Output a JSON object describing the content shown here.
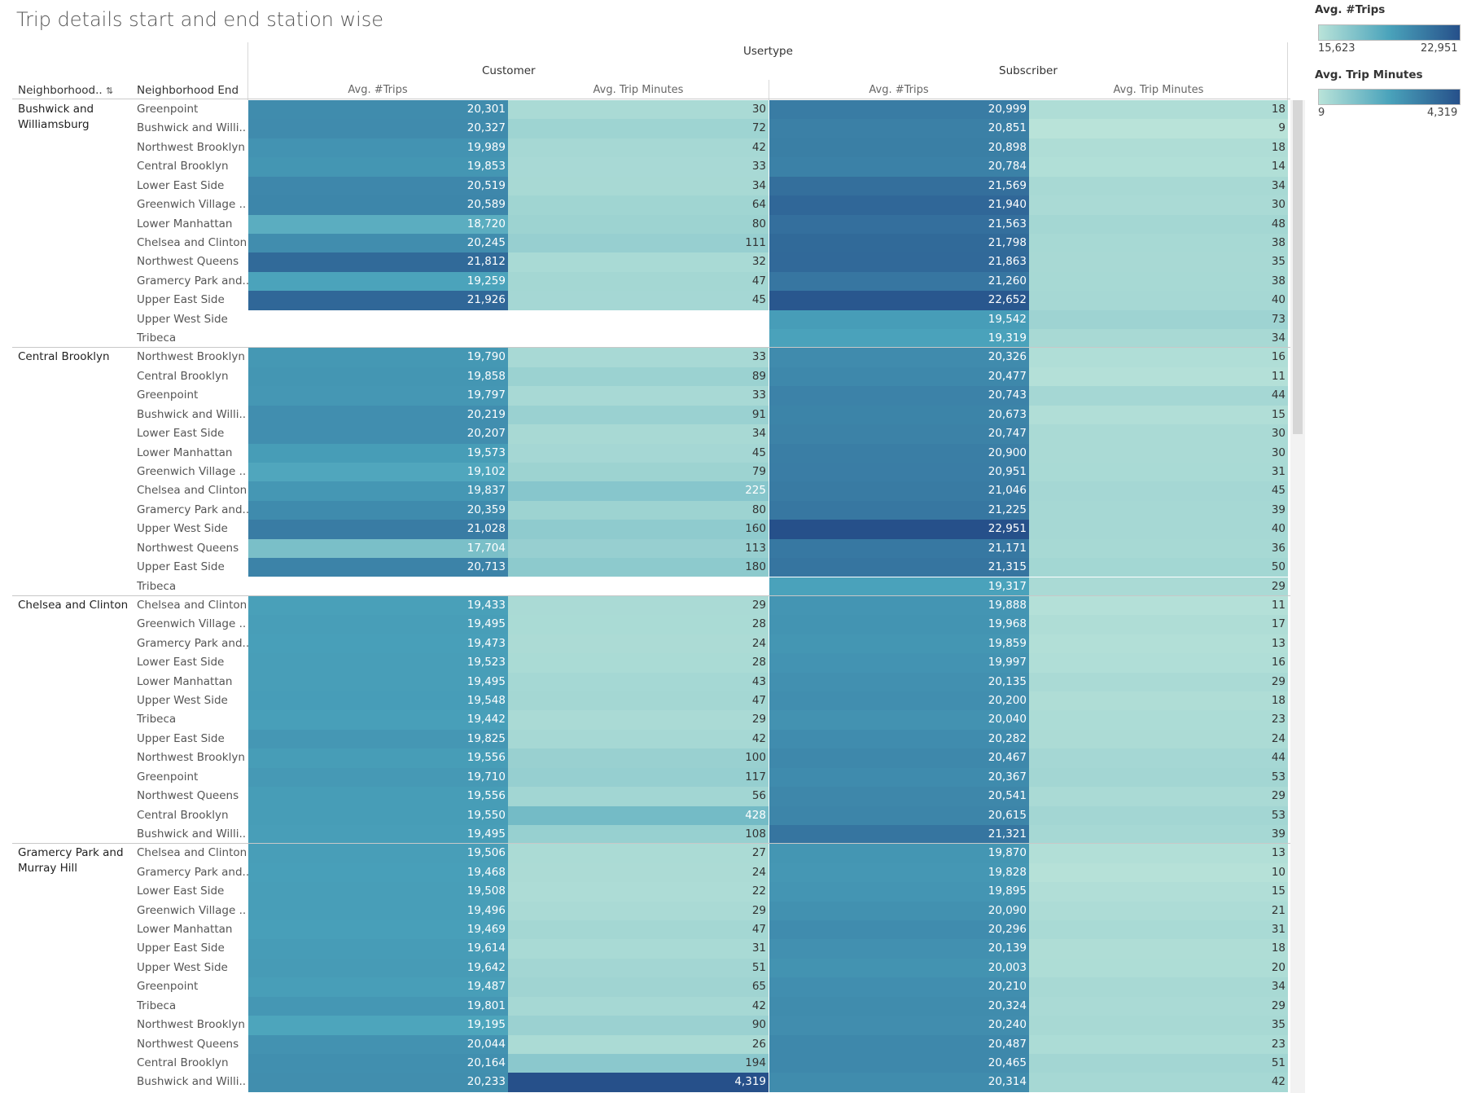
{
  "title": "Trip details start and end station wise",
  "headers": {
    "usertype": "Usertype",
    "customer": "Customer",
    "subscriber": "Subscriber",
    "neighborhood_start": "Neighborhood..",
    "neighborhood_end": "Neighborhood End",
    "avg_trips": "Avg. #Trips",
    "avg_trip_minutes": "Avg. Trip Minutes",
    "sort_icon": "sort-descending-icon"
  },
  "legend": {
    "trips": {
      "title": "Avg. #Trips",
      "min": "15,623",
      "max": "22,951"
    },
    "minutes": {
      "title": "Avg. Trip Minutes",
      "min": "9",
      "max": "4,319"
    }
  },
  "colors": {
    "light": "#b9e3d9",
    "mid": "#4aa3bb",
    "dark": "#26508a"
  },
  "chart_data": {
    "type": "table",
    "title": "Trip details start and end station wise",
    "columns": [
      "Customer Avg. #Trips",
      "Customer Avg. Trip Minutes",
      "Subscriber Avg. #Trips",
      "Subscriber Avg. Trip Minutes"
    ],
    "color_scale": {
      "trips_range": [
        15623,
        22951
      ],
      "minutes_range": [
        9,
        4319
      ]
    },
    "groups": [
      {
        "start": "Bushwick and Williamsburg",
        "rows": [
          {
            "end": "Greenpoint",
            "c_trips": "20,301",
            "c_min": "30",
            "s_trips": "20,999",
            "s_min": "18"
          },
          {
            "end": "Bushwick and Willi..",
            "c_trips": "20,327",
            "c_min": "72",
            "s_trips": "20,851",
            "s_min": "9"
          },
          {
            "end": "Northwest Brooklyn",
            "c_trips": "19,989",
            "c_min": "42",
            "s_trips": "20,898",
            "s_min": "18"
          },
          {
            "end": "Central Brooklyn",
            "c_trips": "19,853",
            "c_min": "33",
            "s_trips": "20,784",
            "s_min": "14"
          },
          {
            "end": "Lower East Side",
            "c_trips": "20,519",
            "c_min": "34",
            "s_trips": "21,569",
            "s_min": "34"
          },
          {
            "end": "Greenwich Village ..",
            "c_trips": "20,589",
            "c_min": "64",
            "s_trips": "21,940",
            "s_min": "30"
          },
          {
            "end": "Lower Manhattan",
            "c_trips": "18,720",
            "c_min": "80",
            "s_trips": "21,563",
            "s_min": "48"
          },
          {
            "end": "Chelsea and Clinton",
            "c_trips": "20,245",
            "c_min": "111",
            "s_trips": "21,798",
            "s_min": "38"
          },
          {
            "end": "Northwest Queens",
            "c_trips": "21,812",
            "c_min": "32",
            "s_trips": "21,863",
            "s_min": "35"
          },
          {
            "end": "Gramercy Park and..",
            "c_trips": "19,259",
            "c_min": "47",
            "s_trips": "21,260",
            "s_min": "38"
          },
          {
            "end": "Upper East Side",
            "c_trips": "21,926",
            "c_min": "45",
            "s_trips": "22,652",
            "s_min": "40"
          },
          {
            "end": "Upper West Side",
            "c_trips": "",
            "c_min": "",
            "s_trips": "19,542",
            "s_min": "73"
          },
          {
            "end": "Tribeca",
            "c_trips": "",
            "c_min": "",
            "s_trips": "19,319",
            "s_min": "34"
          }
        ]
      },
      {
        "start": "Central Brooklyn",
        "rows": [
          {
            "end": "Northwest Brooklyn",
            "c_trips": "19,790",
            "c_min": "33",
            "s_trips": "20,326",
            "s_min": "16"
          },
          {
            "end": "Central Brooklyn",
            "c_trips": "19,858",
            "c_min": "89",
            "s_trips": "20,477",
            "s_min": "11"
          },
          {
            "end": "Greenpoint",
            "c_trips": "19,797",
            "c_min": "33",
            "s_trips": "20,743",
            "s_min": "44"
          },
          {
            "end": "Bushwick and Willi..",
            "c_trips": "20,219",
            "c_min": "91",
            "s_trips": "20,673",
            "s_min": "15"
          },
          {
            "end": "Lower East Side",
            "c_trips": "20,207",
            "c_min": "34",
            "s_trips": "20,747",
            "s_min": "30"
          },
          {
            "end": "Lower Manhattan",
            "c_trips": "19,573",
            "c_min": "45",
            "s_trips": "20,900",
            "s_min": "30"
          },
          {
            "end": "Greenwich Village ..",
            "c_trips": "19,102",
            "c_min": "79",
            "s_trips": "20,951",
            "s_min": "31"
          },
          {
            "end": "Chelsea and Clinton",
            "c_trips": "19,837",
            "c_min": "225",
            "s_trips": "21,046",
            "s_min": "45"
          },
          {
            "end": "Gramercy Park and..",
            "c_trips": "20,359",
            "c_min": "80",
            "s_trips": "21,225",
            "s_min": "39"
          },
          {
            "end": "Upper West Side",
            "c_trips": "21,028",
            "c_min": "160",
            "s_trips": "22,951",
            "s_min": "40"
          },
          {
            "end": "Northwest Queens",
            "c_trips": "17,704",
            "c_min": "113",
            "s_trips": "21,171",
            "s_min": "36"
          },
          {
            "end": "Upper East Side",
            "c_trips": "20,713",
            "c_min": "180",
            "s_trips": "21,315",
            "s_min": "50"
          },
          {
            "end": "Tribeca",
            "c_trips": "",
            "c_min": "",
            "s_trips": "19,317",
            "s_min": "29"
          }
        ]
      },
      {
        "start": "Chelsea and Clinton",
        "rows": [
          {
            "end": "Chelsea and Clinton",
            "c_trips": "19,433",
            "c_min": "29",
            "s_trips": "19,888",
            "s_min": "11"
          },
          {
            "end": "Greenwich Village ..",
            "c_trips": "19,495",
            "c_min": "28",
            "s_trips": "19,968",
            "s_min": "17"
          },
          {
            "end": "Gramercy Park and..",
            "c_trips": "19,473",
            "c_min": "24",
            "s_trips": "19,859",
            "s_min": "13"
          },
          {
            "end": "Lower East Side",
            "c_trips": "19,523",
            "c_min": "28",
            "s_trips": "19,997",
            "s_min": "16"
          },
          {
            "end": "Lower Manhattan",
            "c_trips": "19,495",
            "c_min": "43",
            "s_trips": "20,135",
            "s_min": "29"
          },
          {
            "end": "Upper West Side",
            "c_trips": "19,548",
            "c_min": "47",
            "s_trips": "20,200",
            "s_min": "18"
          },
          {
            "end": "Tribeca",
            "c_trips": "19,442",
            "c_min": "29",
            "s_trips": "20,040",
            "s_min": "23"
          },
          {
            "end": "Upper East Side",
            "c_trips": "19,825",
            "c_min": "42",
            "s_trips": "20,282",
            "s_min": "24"
          },
          {
            "end": "Northwest Brooklyn",
            "c_trips": "19,556",
            "c_min": "100",
            "s_trips": "20,467",
            "s_min": "44"
          },
          {
            "end": "Greenpoint",
            "c_trips": "19,710",
            "c_min": "117",
            "s_trips": "20,367",
            "s_min": "53"
          },
          {
            "end": "Northwest Queens",
            "c_trips": "19,556",
            "c_min": "56",
            "s_trips": "20,541",
            "s_min": "29"
          },
          {
            "end": "Central Brooklyn",
            "c_trips": "19,550",
            "c_min": "428",
            "s_trips": "20,615",
            "s_min": "53"
          },
          {
            "end": "Bushwick and Willi..",
            "c_trips": "19,495",
            "c_min": "108",
            "s_trips": "21,321",
            "s_min": "39"
          }
        ]
      },
      {
        "start": "Gramercy Park and Murray Hill",
        "rows": [
          {
            "end": "Chelsea and Clinton",
            "c_trips": "19,506",
            "c_min": "27",
            "s_trips": "19,870",
            "s_min": "13"
          },
          {
            "end": "Gramercy Park and..",
            "c_trips": "19,468",
            "c_min": "24",
            "s_trips": "19,828",
            "s_min": "10"
          },
          {
            "end": "Lower East Side",
            "c_trips": "19,508",
            "c_min": "22",
            "s_trips": "19,895",
            "s_min": "15"
          },
          {
            "end": "Greenwich Village ..",
            "c_trips": "19,496",
            "c_min": "29",
            "s_trips": "20,090",
            "s_min": "21"
          },
          {
            "end": "Lower Manhattan",
            "c_trips": "19,469",
            "c_min": "47",
            "s_trips": "20,296",
            "s_min": "31"
          },
          {
            "end": "Upper East Side",
            "c_trips": "19,614",
            "c_min": "31",
            "s_trips": "20,139",
            "s_min": "18"
          },
          {
            "end": "Upper West Side",
            "c_trips": "19,642",
            "c_min": "51",
            "s_trips": "20,003",
            "s_min": "20"
          },
          {
            "end": "Greenpoint",
            "c_trips": "19,487",
            "c_min": "65",
            "s_trips": "20,210",
            "s_min": "34"
          },
          {
            "end": "Tribeca",
            "c_trips": "19,801",
            "c_min": "42",
            "s_trips": "20,324",
            "s_min": "29"
          },
          {
            "end": "Northwest Brooklyn",
            "c_trips": "19,195",
            "c_min": "90",
            "s_trips": "20,240",
            "s_min": "35"
          },
          {
            "end": "Northwest Queens",
            "c_trips": "20,044",
            "c_min": "26",
            "s_trips": "20,487",
            "s_min": "23"
          },
          {
            "end": "Central Brooklyn",
            "c_trips": "20,164",
            "c_min": "194",
            "s_trips": "20,465",
            "s_min": "51"
          },
          {
            "end": "Bushwick and Willi..",
            "c_trips": "20,233",
            "c_min": "4,319",
            "s_trips": "20,314",
            "s_min": "42"
          }
        ]
      }
    ]
  }
}
